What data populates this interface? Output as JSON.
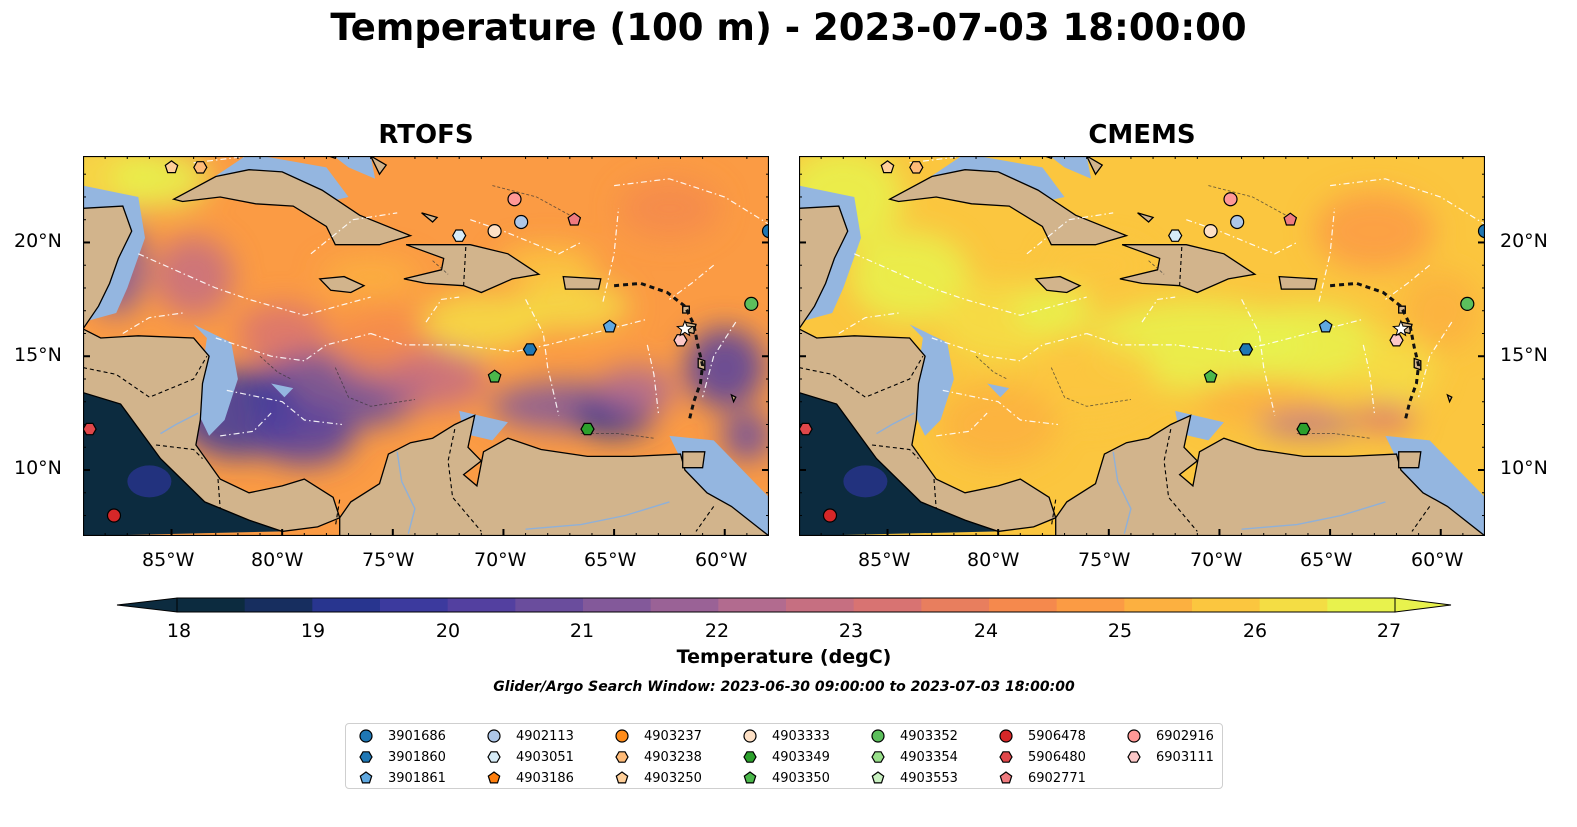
{
  "title": "Temperature (100 m) - 2023-07-03 18:00:00",
  "panels": [
    {
      "title": "RTOFS",
      "model": "rtofs"
    },
    {
      "title": "CMEMS",
      "model": "cmems"
    }
  ],
  "lat_labels": [
    "20°N",
    "15°N",
    "10°N"
  ],
  "lon_labels": [
    "85°W",
    "80°W",
    "75°W",
    "70°W",
    "65°W",
    "60°W"
  ],
  "colorbar": {
    "label": "Temperature (degC)",
    "ticks": [
      "18",
      "19",
      "20",
      "21",
      "22",
      "23",
      "24",
      "25",
      "26",
      "27"
    ],
    "colors": [
      "#0c2b3f",
      "#172e5f",
      "#28358f",
      "#3c3a9e",
      "#5340a0",
      "#6a4d9d",
      "#83599a",
      "#9a6296",
      "#b26b8f",
      "#c66f81",
      "#d87372",
      "#e87e5e",
      "#f5894d",
      "#fb9b44",
      "#fcb040",
      "#fbc63f",
      "#f4dd44",
      "#e8f24d"
    ]
  },
  "search_window": "Glider/Argo Search Window: 2023-06-30 09:00:00 to 2023-07-03 18:00:00",
  "legend": [
    {
      "id": "3901686",
      "color": "#1f77b4",
      "marker": "circle"
    },
    {
      "id": "3901860",
      "color": "#1f77b4",
      "marker": "hexagon"
    },
    {
      "id": "3901861",
      "color": "#5fa8e0",
      "marker": "pentagon"
    },
    {
      "id": "4902113",
      "color": "#aec7e8",
      "marker": "circle"
    },
    {
      "id": "4903051",
      "color": "#d6ecf8",
      "marker": "hexagon"
    },
    {
      "id": "4903186",
      "color": "#ff7f0e",
      "marker": "pentagon"
    },
    {
      "id": "4903237",
      "color": "#ff8c1a",
      "marker": "circle"
    },
    {
      "id": "4903238",
      "color": "#ffbb78",
      "marker": "hexagon"
    },
    {
      "id": "4903250",
      "color": "#ffcf99",
      "marker": "pentagon"
    },
    {
      "id": "4903333",
      "color": "#fde0c5",
      "marker": "circle"
    },
    {
      "id": "4903349",
      "color": "#2ca02c",
      "marker": "hexagon"
    },
    {
      "id": "4903350",
      "color": "#4bb84b",
      "marker": "pentagon"
    },
    {
      "id": "4903352",
      "color": "#5cbf5c",
      "marker": "circle"
    },
    {
      "id": "4903354",
      "color": "#98df8a",
      "marker": "hexagon"
    },
    {
      "id": "4903553",
      "color": "#c8f0c0",
      "marker": "pentagon"
    },
    {
      "id": "5906478",
      "color": "#d62728",
      "marker": "circle"
    },
    {
      "id": "5906480",
      "color": "#e0474a",
      "marker": "hexagon"
    },
    {
      "id": "6902771",
      "color": "#ef7b7f",
      "marker": "pentagon"
    },
    {
      "id": "6902916",
      "color": "#ff9896",
      "marker": "circle"
    },
    {
      "id": "6903111",
      "color": "#fcc8c8",
      "marker": "hexagon"
    }
  ],
  "floats_on_map": [
    {
      "id": "3901686",
      "lon": -58.0,
      "lat": 20.5
    },
    {
      "id": "4902113",
      "lon": -69.2,
      "lat": 20.9
    },
    {
      "id": "6902916",
      "lon": -69.5,
      "lat": 21.9
    },
    {
      "id": "4903333",
      "lon": -70.4,
      "lat": 20.5
    },
    {
      "id": "4903051",
      "lon": -72.0,
      "lat": 20.3
    },
    {
      "id": "6902771",
      "lon": -66.8,
      "lat": 21.0
    },
    {
      "id": "4903353",
      "lon": -58.8,
      "lat": 17.3
    },
    {
      "id": "3901861",
      "lon": -65.2,
      "lat": 16.3
    },
    {
      "id": "3901860",
      "lon": -68.8,
      "lat": 15.3
    },
    {
      "id": "4903350",
      "lon": -70.4,
      "lat": 14.1
    },
    {
      "id": "4903349",
      "lon": -66.2,
      "lat": 11.8
    },
    {
      "id": "6903111",
      "lon": -62.0,
      "lat": 15.7
    },
    {
      "id": "5906480",
      "lon": -88.7,
      "lat": 11.8
    },
    {
      "id": "5906478",
      "lon": -87.6,
      "lat": 8.0
    },
    {
      "id": "4903250",
      "lon": -85.0,
      "lat": 23.3
    },
    {
      "id": "4903238",
      "lon": -83.7,
      "lat": 23.3
    }
  ]
}
